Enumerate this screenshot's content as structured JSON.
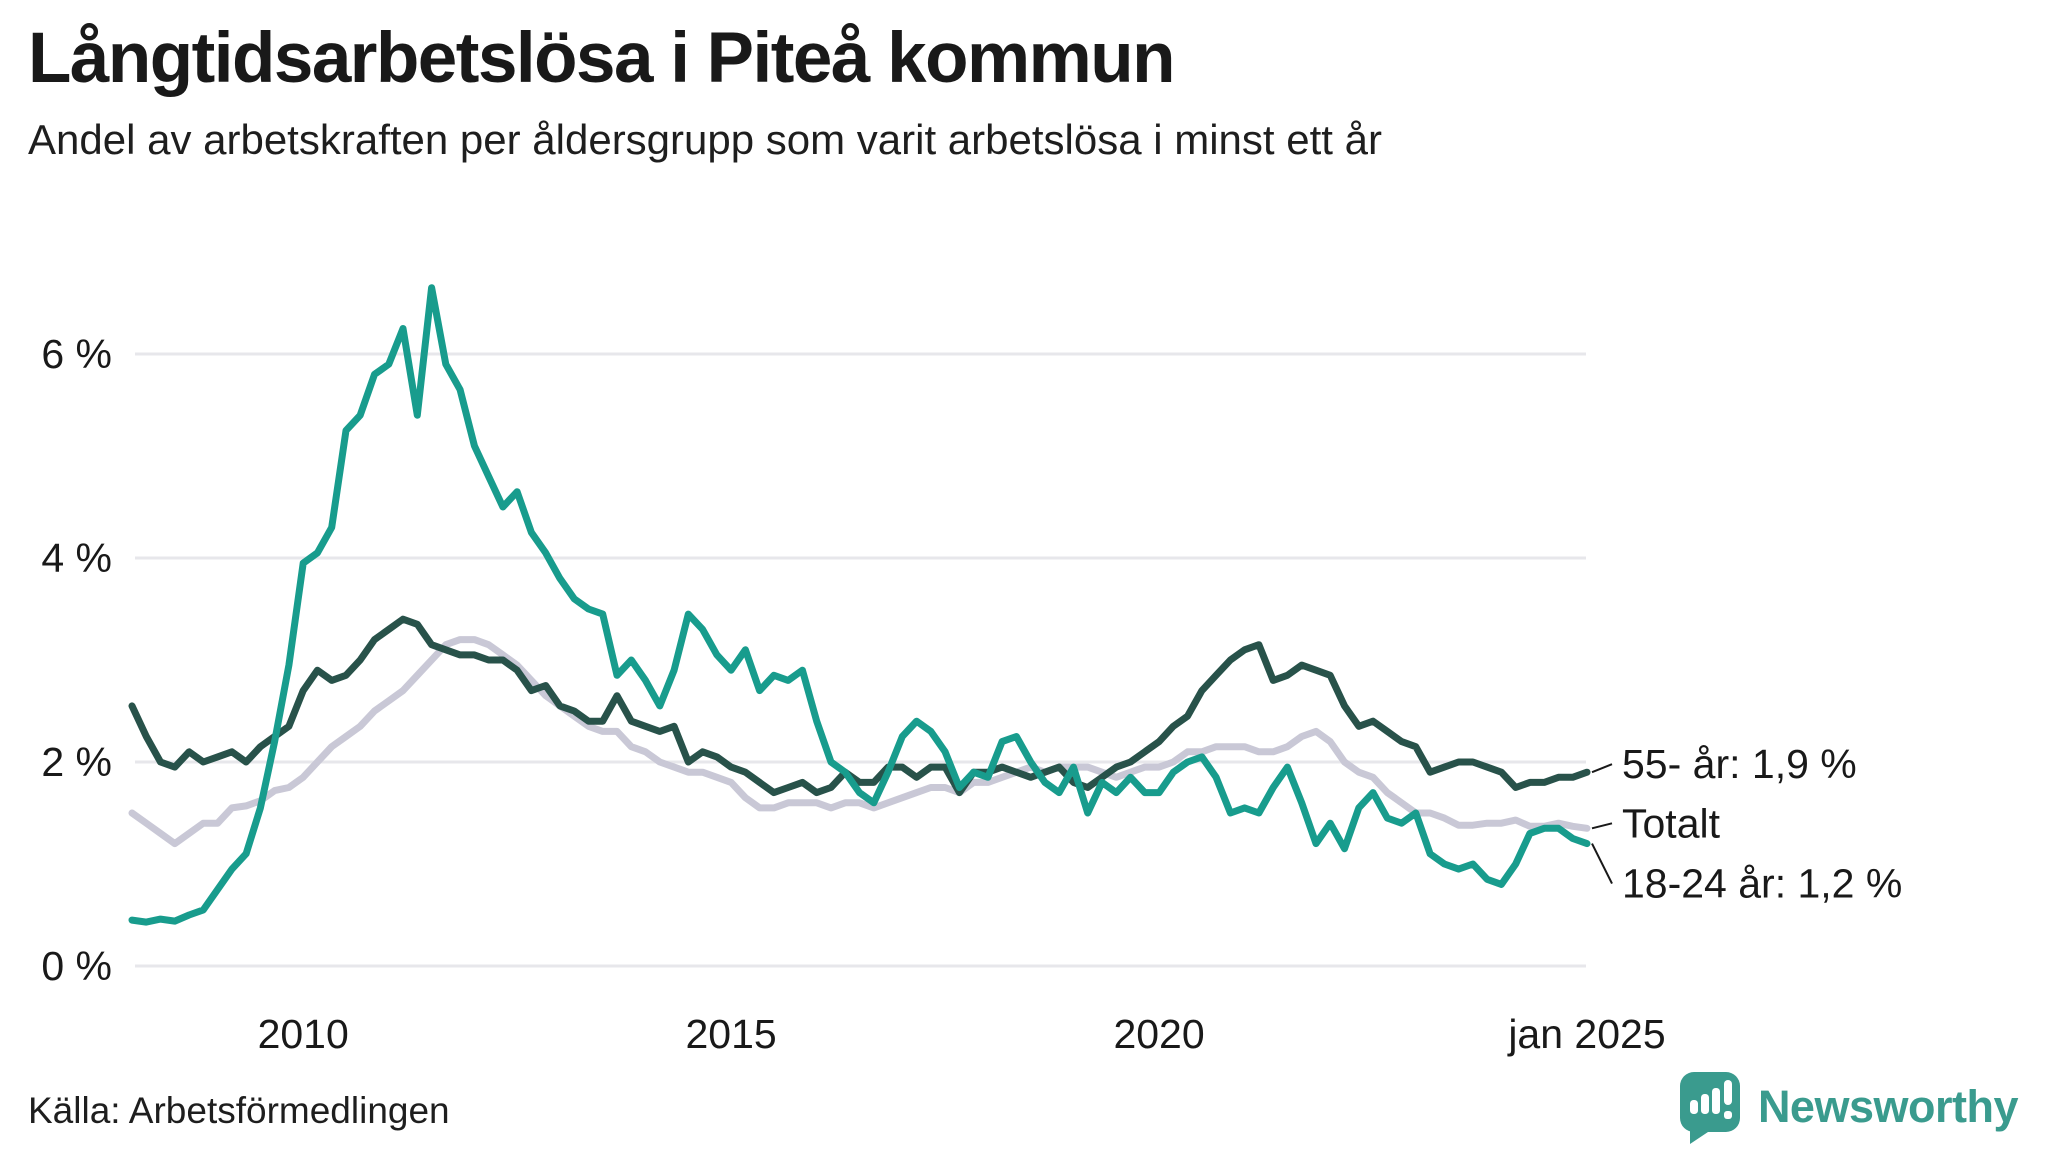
{
  "header": {
    "title": "Långtidsarbetslösa i Piteå kommun",
    "subtitle": "Andel av arbetskraften per åldersgrupp som varit arbetslösa i minst ett år"
  },
  "chart_data": {
    "type": "line",
    "title": "Långtidsarbetslösa i Piteå kommun",
    "x_start_year": 2008,
    "x_end_year": 2025,
    "step_months": 2,
    "ylim": [
      0,
      6.8
    ],
    "grid": true,
    "legend_position": "right-end-labels",
    "yticks": [
      {
        "label": "6 %",
        "value": 6
      },
      {
        "label": "4 %",
        "value": 4
      },
      {
        "label": "2 %",
        "value": 2
      },
      {
        "label": "0 %",
        "value": 0
      }
    ],
    "xticks": [
      {
        "label": "2010",
        "year": 2010
      },
      {
        "label": "2015",
        "year": 2015
      },
      {
        "label": "2020",
        "year": 2020
      },
      {
        "label": "jan 2025",
        "year": 2025
      }
    ],
    "series": [
      {
        "name": "Totalt",
        "color": "#c9c8d6",
        "end_label": "Totalt",
        "values": [
          1.5,
          1.4,
          1.3,
          1.2,
          1.3,
          1.4,
          1.4,
          1.55,
          1.57,
          1.62,
          1.72,
          1.75,
          1.85,
          2.0,
          2.15,
          2.25,
          2.35,
          2.5,
          2.6,
          2.7,
          2.85,
          3.0,
          3.15,
          3.2,
          3.2,
          3.15,
          3.05,
          2.95,
          2.8,
          2.65,
          2.55,
          2.45,
          2.35,
          2.3,
          2.3,
          2.15,
          2.1,
          2.0,
          1.95,
          1.9,
          1.9,
          1.85,
          1.8,
          1.65,
          1.55,
          1.55,
          1.6,
          1.6,
          1.6,
          1.55,
          1.6,
          1.6,
          1.55,
          1.6,
          1.65,
          1.7,
          1.75,
          1.75,
          1.7,
          1.8,
          1.8,
          1.85,
          1.9,
          1.95,
          1.9,
          1.95,
          1.95,
          1.95,
          1.9,
          1.85,
          1.9,
          1.95,
          1.95,
          2.0,
          2.1,
          2.1,
          2.15,
          2.15,
          2.15,
          2.1,
          2.1,
          2.15,
          2.25,
          2.3,
          2.2,
          2.0,
          1.9,
          1.85,
          1.7,
          1.6,
          1.5,
          1.5,
          1.45,
          1.38,
          1.38,
          1.4,
          1.4,
          1.43,
          1.37,
          1.37,
          1.4,
          1.37,
          1.35
        ]
      },
      {
        "name": "55- år",
        "color": "#28524a",
        "end_label": "55- år: 1,9 %",
        "values": [
          2.55,
          2.25,
          2.0,
          1.95,
          2.1,
          2.0,
          2.05,
          2.1,
          2.0,
          2.15,
          2.25,
          2.35,
          2.7,
          2.9,
          2.8,
          2.85,
          3.0,
          3.2,
          3.3,
          3.4,
          3.35,
          3.15,
          3.1,
          3.05,
          3.05,
          3.0,
          3.0,
          2.9,
          2.7,
          2.75,
          2.55,
          2.5,
          2.4,
          2.4,
          2.65,
          2.4,
          2.35,
          2.3,
          2.35,
          2.0,
          2.1,
          2.05,
          1.95,
          1.9,
          1.8,
          1.7,
          1.75,
          1.8,
          1.7,
          1.75,
          1.9,
          1.8,
          1.8,
          1.95,
          1.95,
          1.85,
          1.95,
          1.95,
          1.7,
          1.9,
          1.9,
          1.95,
          1.9,
          1.85,
          1.9,
          1.95,
          1.8,
          1.75,
          1.85,
          1.95,
          2.0,
          2.1,
          2.2,
          2.35,
          2.45,
          2.7,
          2.85,
          3.0,
          3.1,
          3.15,
          2.8,
          2.85,
          2.95,
          2.9,
          2.85,
          2.55,
          2.35,
          2.4,
          2.3,
          2.2,
          2.15,
          1.9,
          1.95,
          2.0,
          2.0,
          1.95,
          1.9,
          1.75,
          1.8,
          1.8,
          1.85,
          1.85,
          1.9
        ]
      },
      {
        "name": "18-24 år",
        "color": "#189c8d",
        "end_label": "18-24 år: 1,2 %",
        "values": [
          0.45,
          0.43,
          0.46,
          0.44,
          0.5,
          0.55,
          0.75,
          0.95,
          1.1,
          1.55,
          2.2,
          2.95,
          3.95,
          4.05,
          4.3,
          5.25,
          5.4,
          5.8,
          5.9,
          6.25,
          5.4,
          6.65,
          5.9,
          5.65,
          5.1,
          4.8,
          4.5,
          4.65,
          4.25,
          4.05,
          3.8,
          3.6,
          3.5,
          3.45,
          2.85,
          3.0,
          2.8,
          2.55,
          2.9,
          3.45,
          3.3,
          3.05,
          2.9,
          3.1,
          2.7,
          2.85,
          2.8,
          2.9,
          2.4,
          2.0,
          1.9,
          1.7,
          1.6,
          1.9,
          2.25,
          2.4,
          2.3,
          2.1,
          1.75,
          1.9,
          1.85,
          2.2,
          2.25,
          2.0,
          1.8,
          1.7,
          1.95,
          1.5,
          1.8,
          1.7,
          1.85,
          1.7,
          1.7,
          1.9,
          2.0,
          2.05,
          1.85,
          1.5,
          1.55,
          1.5,
          1.75,
          1.95,
          1.6,
          1.2,
          1.4,
          1.15,
          1.55,
          1.7,
          1.45,
          1.4,
          1.5,
          1.1,
          1.0,
          0.95,
          1.0,
          0.85,
          0.8,
          1.0,
          1.3,
          1.35,
          1.35,
          1.25,
          1.2
        ]
      }
    ]
  },
  "footer": {
    "source": "Källa: Arbetsförmedlingen",
    "brand": "Newsworthy"
  }
}
